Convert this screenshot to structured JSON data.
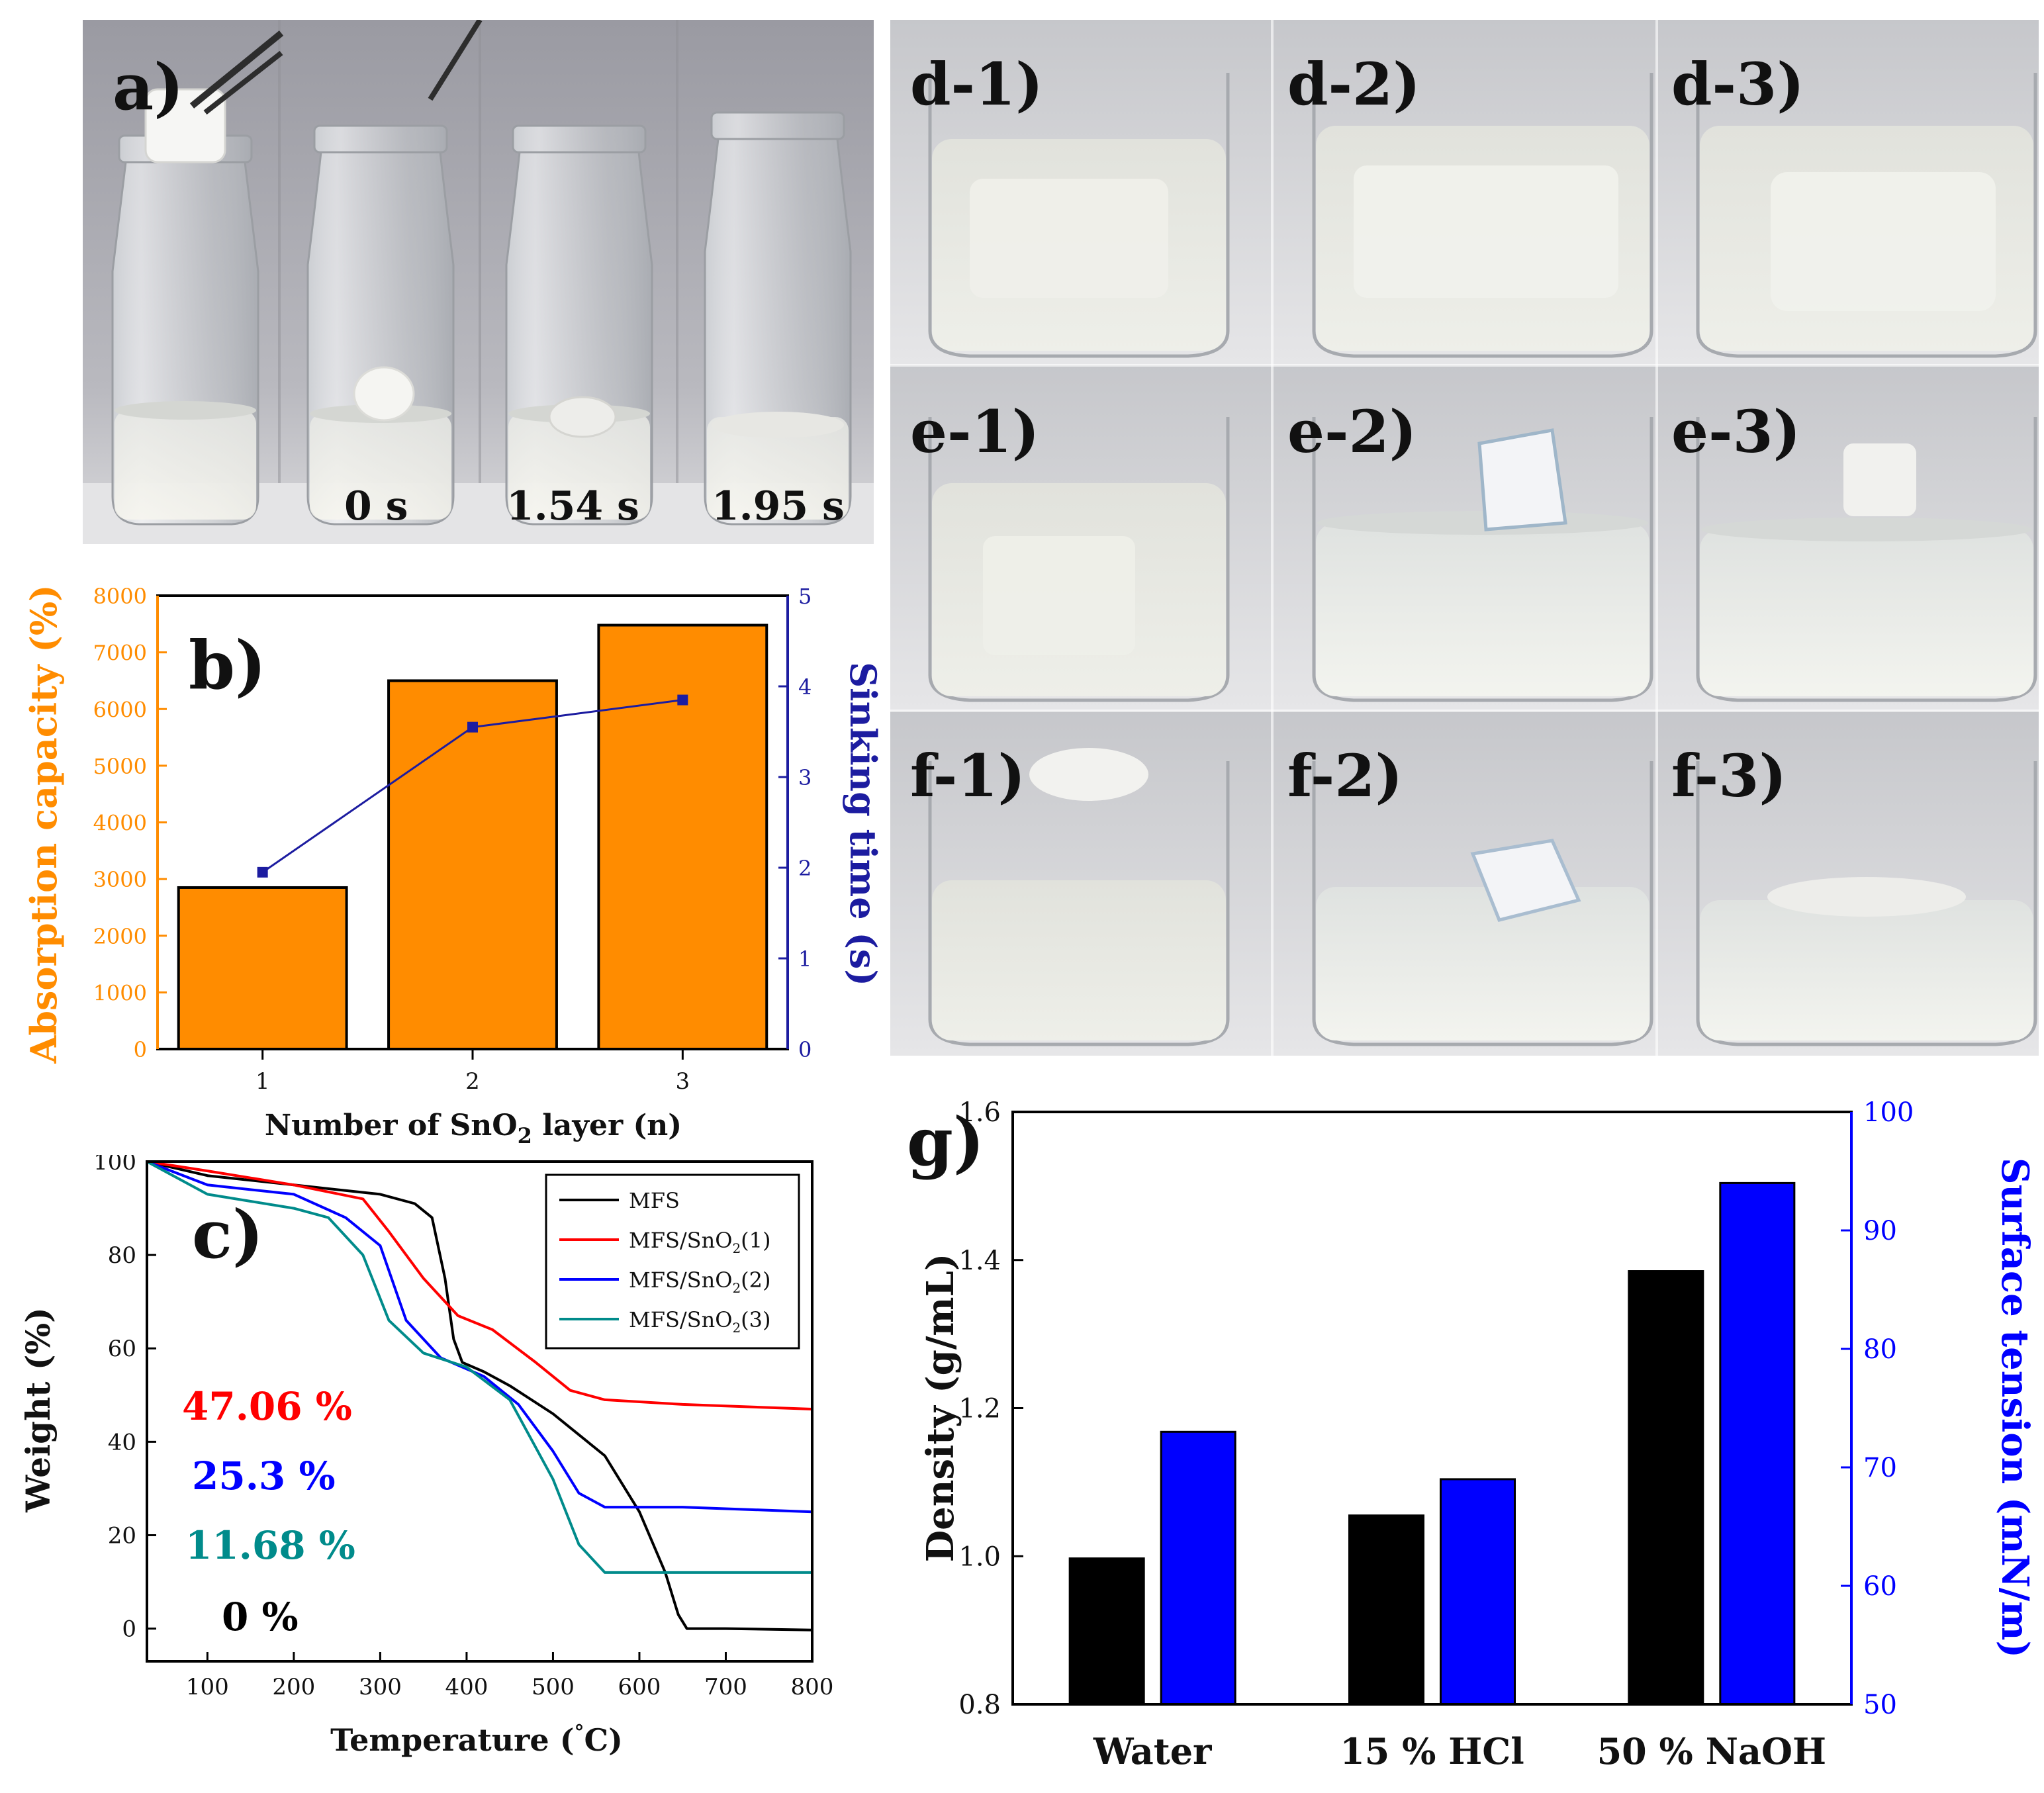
{
  "figure": {
    "panel_a": {
      "label": "a)",
      "frames": [
        {
          "time": ""
        },
        {
          "time": "0 s"
        },
        {
          "time": "1.54 s"
        },
        {
          "time": "1.95 s"
        }
      ]
    },
    "panel_def": {
      "rows": [
        [
          "d-1)",
          "d-2)",
          "d-3)"
        ],
        [
          "e-1)",
          "e-2)",
          "e-3)"
        ],
        [
          "f-1)",
          "f-2)",
          "f-3)"
        ]
      ]
    }
  },
  "chart_data": [
    {
      "id": "b",
      "type": "bar",
      "panel_label": "b)",
      "categories": [
        "1",
        "2",
        "3"
      ],
      "xlabel_parts": [
        "Number of SnO",
        "2",
        " layer (n)"
      ],
      "series": [
        {
          "name": "Absorption capacity",
          "axis": "left",
          "kind": "bar",
          "color": "#ff8c00",
          "values": [
            2850,
            6500,
            7480
          ]
        },
        {
          "name": "Sinking time",
          "axis": "right",
          "kind": "line",
          "color": "#1c1ca0",
          "values": [
            1.95,
            3.55,
            3.85
          ]
        }
      ],
      "ylabel": "Absorption capacity (%)",
      "y2label": "Sinking time (s)",
      "ylim": [
        0,
        8000
      ],
      "y2lim": [
        0,
        5
      ],
      "yticks": [
        "0",
        "1000",
        "2000",
        "3000",
        "4000",
        "5000",
        "6000",
        "7000",
        "8000"
      ],
      "y2ticks": [
        "0",
        "1",
        "2",
        "3",
        "4",
        "5"
      ],
      "ycolor": "#ff8c00",
      "y2color": "#1c1ca0"
    },
    {
      "id": "c",
      "type": "line",
      "panel_label": "c)",
      "xlabel": "Temperature (",
      "xlabel_unit": "C)",
      "xlabel_deg": "°",
      "ylabel": "Weight (%)",
      "xlim": [
        30,
        800
      ],
      "ylim": [
        -7,
        100
      ],
      "xticks": [
        "100",
        "200",
        "300",
        "400",
        "500",
        "600",
        "700",
        "800"
      ],
      "yticks": [
        "0",
        "20",
        "40",
        "60",
        "80",
        "100"
      ],
      "series": [
        {
          "name": "MFS",
          "color": "#000000",
          "x": [
            30,
            100,
            200,
            300,
            340,
            360,
            375,
            385,
            395,
            420,
            450,
            500,
            560,
            600,
            630,
            645,
            655,
            700,
            800
          ],
          "y": [
            100,
            97,
            95,
            93,
            91,
            88,
            75,
            62,
            57,
            55,
            52,
            46,
            37,
            25,
            12,
            3,
            0,
            0,
            -0.3
          ]
        },
        {
          "name": "MFS/SnO2(1)",
          "color": "#ff0000",
          "x": [
            30,
            100,
            200,
            280,
            310,
            350,
            390,
            430,
            480,
            520,
            560,
            650,
            800
          ],
          "y": [
            100,
            98,
            95,
            92,
            85,
            75,
            67,
            64,
            57,
            51,
            49,
            48,
            47
          ]
        },
        {
          "name": "MFS/SnO2(2)",
          "color": "#0000ff",
          "x": [
            30,
            100,
            200,
            260,
            300,
            330,
            370,
            420,
            460,
            500,
            530,
            560,
            650,
            800
          ],
          "y": [
            100,
            95,
            93,
            88,
            82,
            66,
            58,
            54,
            48,
            38,
            29,
            26,
            26,
            25
          ]
        },
        {
          "name": "MFS/SnO2(3)",
          "color": "#008b8b",
          "x": [
            30,
            100,
            200,
            240,
            280,
            310,
            350,
            400,
            450,
            500,
            530,
            560,
            650,
            800
          ],
          "y": [
            100,
            93,
            90,
            88,
            80,
            66,
            59,
            56,
            49,
            32,
            18,
            12,
            12,
            12
          ]
        }
      ],
      "legend": [
        "MFS",
        "MFS/SnO",
        "2",
        "(1)",
        "(2)",
        "(3)"
      ],
      "annotations": [
        {
          "text": "47.06 %",
          "color": "#ff0000"
        },
        {
          "text": "25.3 %",
          "color": "#0000ff"
        },
        {
          "text": "11.68 %",
          "color": "#008b8b"
        },
        {
          "text": "0 %",
          "color": "#000000"
        }
      ]
    },
    {
      "id": "g",
      "type": "bar",
      "panel_label": "g)",
      "categories": [
        "Water",
        "15 % HCl",
        "50 % NaOH"
      ],
      "series": [
        {
          "name": "Density",
          "axis": "left",
          "color": "#000000",
          "values": [
            0.997,
            1.055,
            1.385
          ]
        },
        {
          "name": "Surface tension",
          "axis": "right",
          "color": "#0000ff",
          "values": [
            73,
            69,
            94
          ]
        }
      ],
      "ylabel": "Density (g/mL)",
      "y2label": "Surface tension (mN/m)",
      "ylim": [
        0.8,
        1.6
      ],
      "y2lim": [
        50,
        100
      ],
      "yticks": [
        "0.8",
        "1.0",
        "1.2",
        "1.4",
        "1.6"
      ],
      "y2ticks": [
        "50",
        "60",
        "70",
        "80",
        "90",
        "100"
      ],
      "y2color": "#0000ff"
    }
  ]
}
